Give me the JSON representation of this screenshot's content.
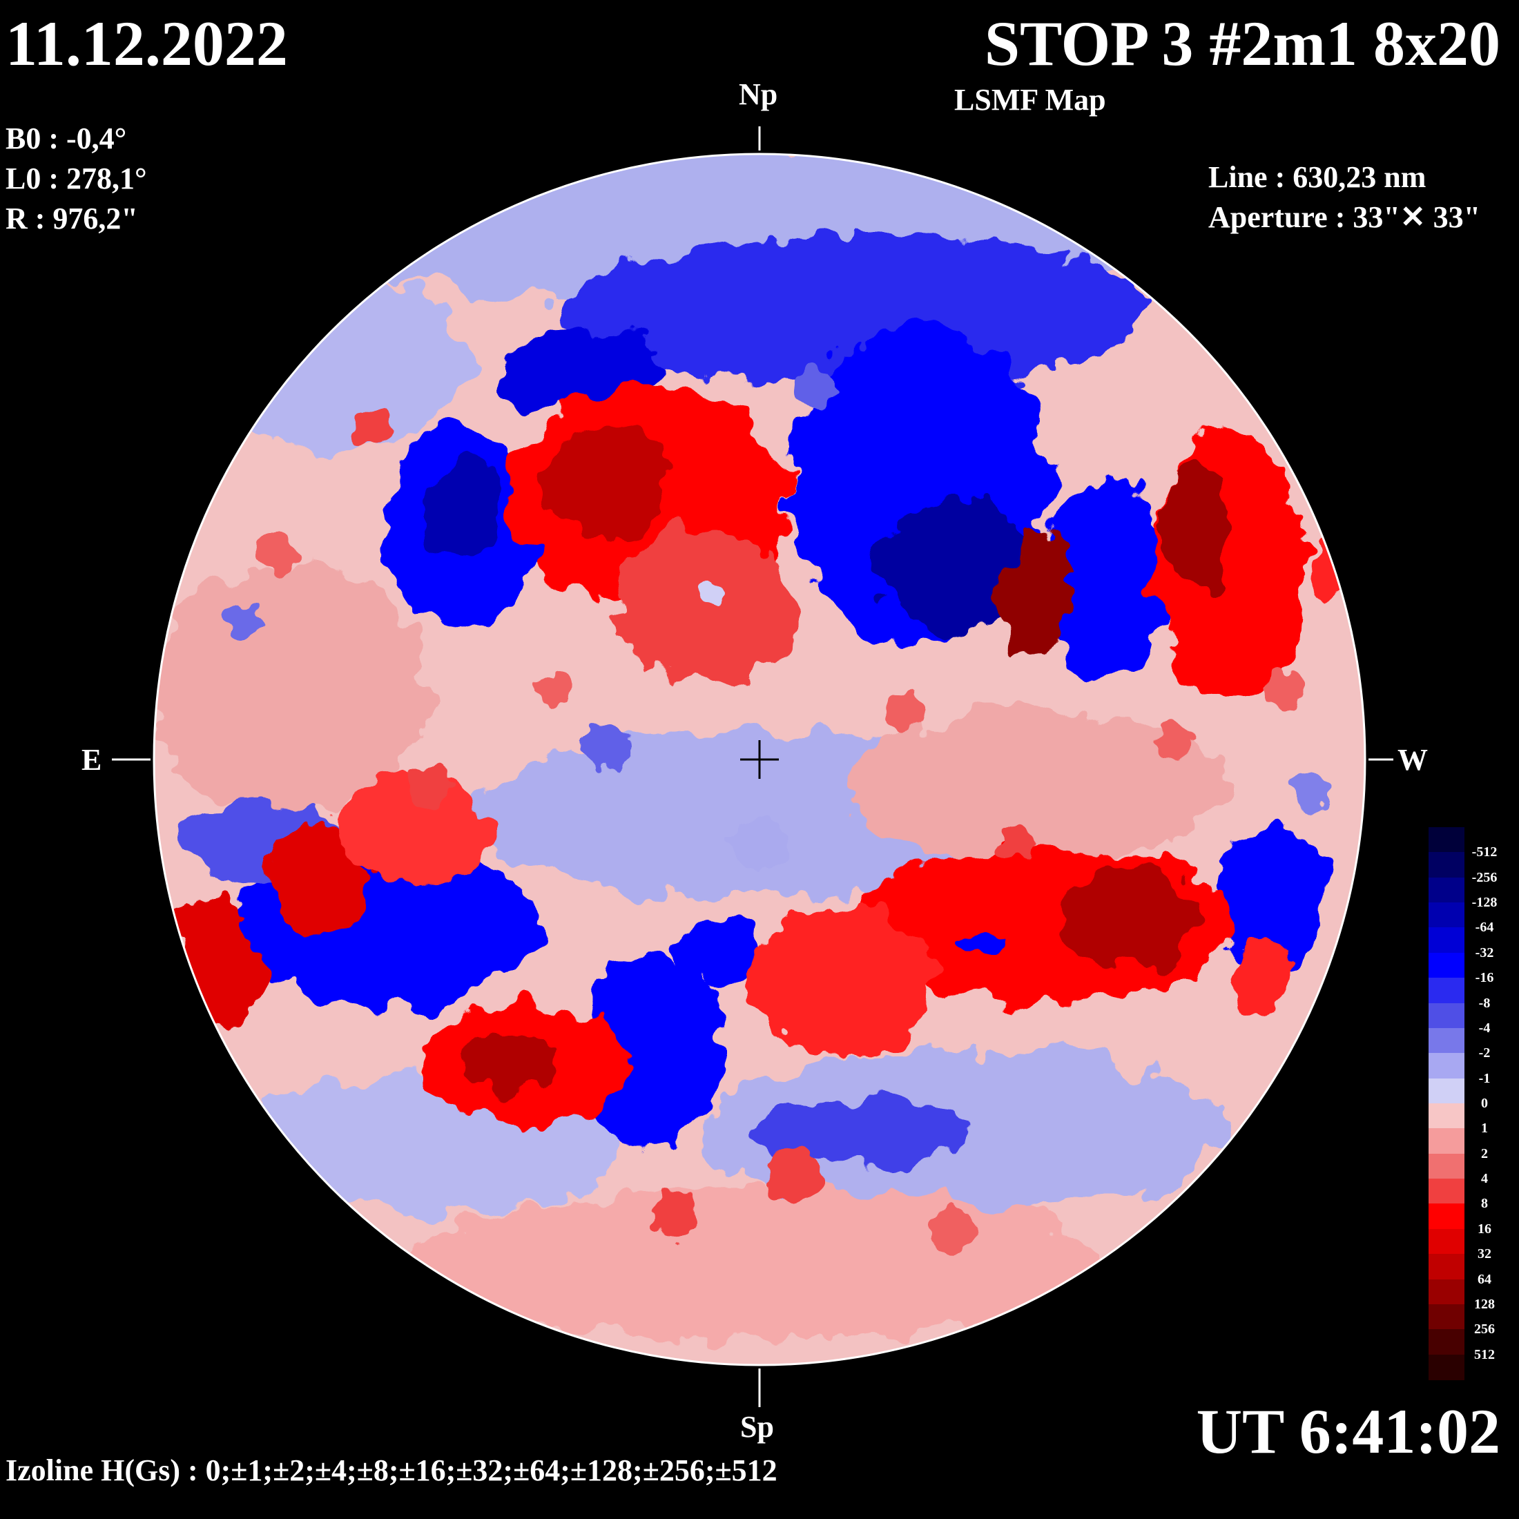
{
  "header": {
    "date": "11.12.2022",
    "title": "STOP 3 #2m1 8x20",
    "subtitle": "LSMF  Map"
  },
  "ephemeris": {
    "b0": "B0 : -0,4°",
    "l0": "L0 : 278,1°",
    "r": "R  : 976,2\""
  },
  "instrument": {
    "line": "Line :  630,23 nm",
    "aperture": "Aperture : 33\"✕ 33\""
  },
  "directions": {
    "north": "Np",
    "south": "Sp",
    "east": "E",
    "west": "W"
  },
  "footer": {
    "time": "UT 6:41:02",
    "izoline": "Izoline H(Gs) : 0;±1;±2;±4;±8;±16;±32;±64;±128;±256;±512"
  },
  "legend": {
    "labels": [
      "-512",
      "-256",
      "-128",
      "-64",
      "-32",
      "-16",
      "-8",
      "-4",
      "-2",
      "-1",
      "0",
      "1",
      "2",
      "4",
      "8",
      "16",
      "32",
      "64",
      "128",
      "256",
      "512"
    ],
    "colors": [
      "#00003a",
      "#000062",
      "#00008a",
      "#0000b0",
      "#0000d6",
      "#0000ff",
      "#2a2af0",
      "#4f4fe6",
      "#7878ea",
      "#a8a8f2",
      "#d0d0f6",
      "#f7c6c6",
      "#f59c9c",
      "#f07070",
      "#f04040",
      "#ff0000",
      "#e00000",
      "#c00000",
      "#9a0000",
      "#700000",
      "#480000",
      "#2a0000"
    ]
  },
  "map": {
    "positive_color": "#ff0000",
    "negative_color": "#0000ff",
    "neutral_positive": "#f7c6c6",
    "neutral_negative": "#c8c8f4"
  }
}
